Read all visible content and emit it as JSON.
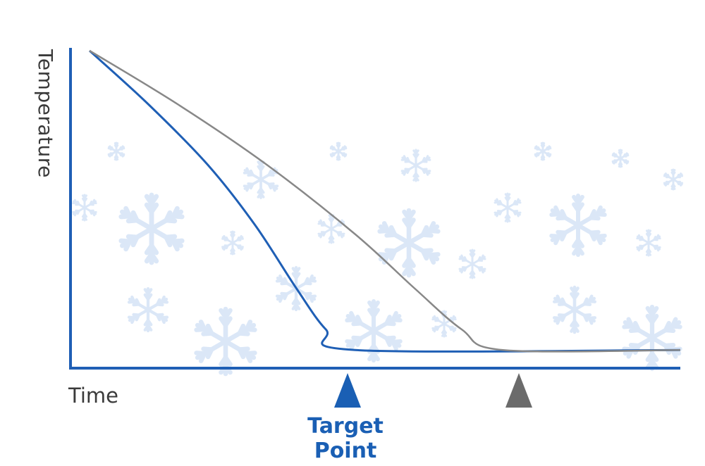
{
  "chart_data": {
    "type": "line",
    "title": "",
    "xlabel": "Time",
    "ylabel": "Temperature",
    "ticks_shown": false,
    "series": [
      {
        "color": "#1f5fb5",
        "x": [
          0,
          0.1,
          0.2,
          0.28,
          0.35,
          0.4,
          0.45,
          1.0
        ],
        "y": [
          1.0,
          0.83,
          0.64,
          0.45,
          0.25,
          0.12,
          0.055,
          0.055
        ]
      },
      {
        "color": "#888888",
        "x": [
          0,
          0.15,
          0.3,
          0.45,
          0.55,
          0.63,
          0.7,
          1.0
        ],
        "y": [
          1.0,
          0.83,
          0.64,
          0.42,
          0.25,
          0.12,
          0.055,
          0.055
        ]
      }
    ],
    "markers": [
      {
        "label": "Target Point",
        "x": 0.45,
        "color": "#1a5fb4"
      },
      {
        "label": "",
        "x": 0.73,
        "color": "#6b6b6b"
      }
    ]
  },
  "colors": {
    "axis": "#1f5fb5",
    "snow": "#cfe0f5"
  },
  "icons": [
    "snowflake-icon"
  ]
}
